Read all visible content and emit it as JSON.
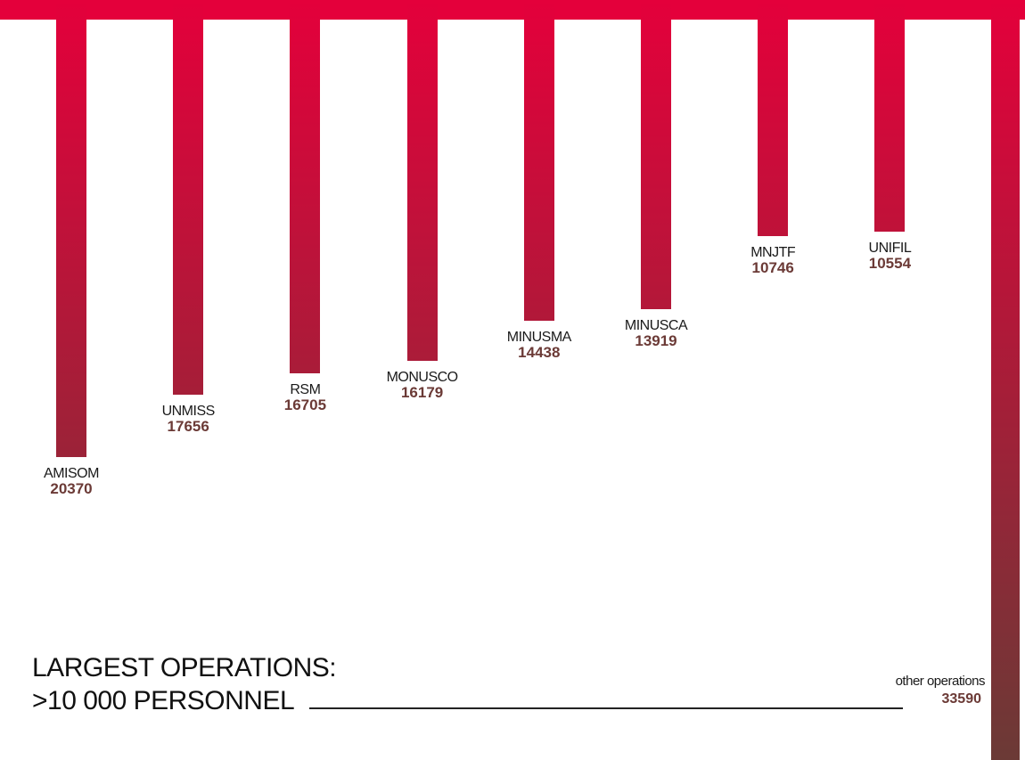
{
  "colors": {
    "accent": "#e4003b",
    "dark": "#6b3a36",
    "text": "#1a1a1a"
  },
  "title": {
    "line1": "LARGEST OPERATIONS:",
    "line2": ">10 000 PERSONNEL"
  },
  "chart_data": {
    "type": "bar",
    "orientation": "hanging-vertical",
    "title": "LARGEST OPERATIONS: >10 000 PERSONNEL",
    "xlabel": "",
    "ylabel": "",
    "grid": false,
    "categories": [
      "AMISOM",
      "UNMISS",
      "RSM",
      "MONUSCO",
      "MINUSMA",
      "MINUSCA",
      "MNJTF",
      "UNIFIL",
      "other operations"
    ],
    "values": [
      20370,
      17656,
      16705,
      16179,
      14438,
      13919,
      10746,
      10554,
      33590
    ]
  }
}
